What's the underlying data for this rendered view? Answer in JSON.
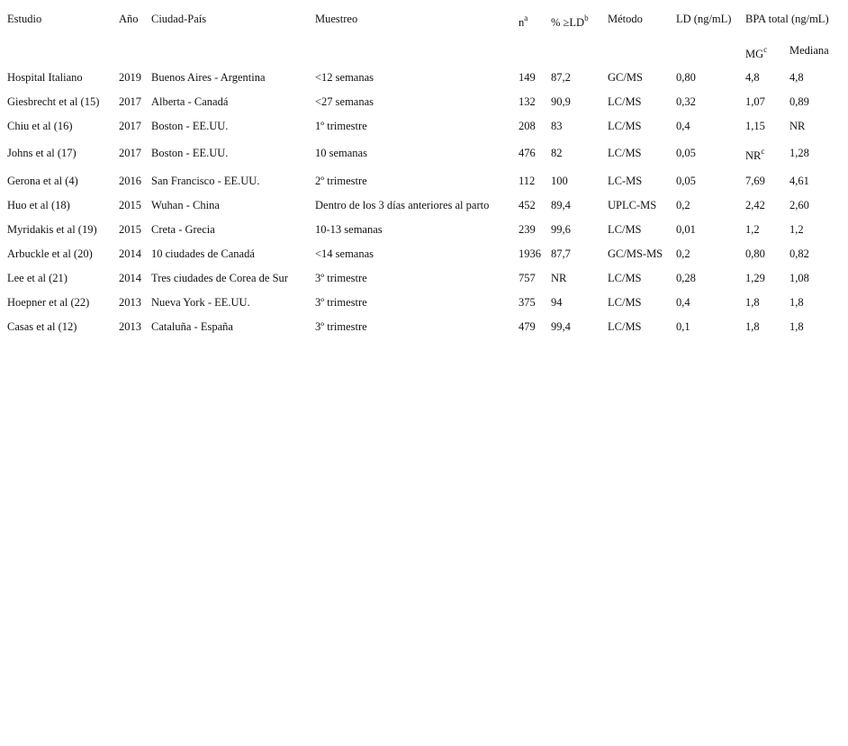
{
  "table": {
    "headers": [
      {
        "text": "Estudio"
      },
      {
        "text": "Año"
      },
      {
        "text": "Ciudad-País"
      },
      {
        "text": "Muestreo"
      },
      {
        "text": "n",
        "sup": "a"
      },
      {
        "text": "% ≥LD",
        "sup": "b"
      },
      {
        "text": "Método"
      },
      {
        "text": "LD (ng/mL)"
      },
      {
        "text": "BPA total (ng/mL)"
      }
    ],
    "subheaders": {
      "mg": {
        "text": "MG",
        "sup": "c"
      },
      "median": {
        "text": "Mediana"
      }
    },
    "rows": [
      [
        "Hospital Italiano",
        "2019",
        "Buenos Aires - Argentina",
        "<12 semanas",
        "149",
        "87,2",
        "GC/MS",
        "0,80",
        "4,8",
        "4,8"
      ],
      [
        "Giesbrecht et al (15)",
        "2017",
        "Alberta - Canadá",
        "<27 semanas",
        "132",
        "90,9",
        "LC/MS",
        "0,32",
        "1,07",
        "0,89"
      ],
      [
        "Chiu et al (16)",
        "2017",
        "Boston - EE.UU.",
        "1º trimestre",
        "208",
        "83",
        "LC/MS",
        "0,4",
        "1,15",
        "NR"
      ],
      [
        "Johns et al (17)",
        "2017",
        "Boston - EE.UU.",
        "10 semanas",
        "476",
        "82",
        "LC/MS",
        "0,05",
        "NR",
        "1,28"
      ],
      [
        "Gerona et al (4)",
        "2016",
        "San Francisco - EE.UU.",
        "2º trimestre",
        "112",
        "100",
        "LC-MS",
        "0,05",
        "7,69",
        "4,61"
      ],
      [
        "Huo et al (18)",
        "2015",
        "Wuhan - China",
        "Dentro de los 3 días anteriores al parto",
        "452",
        "89,4",
        "UPLC-MS",
        "0,2",
        "2,42",
        "2,60"
      ],
      [
        "Myridakis et al (19)",
        "2015",
        "Creta - Grecia",
        "10-13 semanas",
        "239",
        "99,6",
        "LC/MS",
        "0,01",
        "1,2",
        "1,2"
      ],
      [
        "Arbuckle et al (20)",
        "2014",
        "10 ciudades de Canadá",
        "<14 semanas",
        "1936",
        "87,7",
        "GC/MS-MS",
        "0,2",
        "0,80",
        "0,82"
      ],
      [
        "Lee et al (21)",
        "2014",
        "Tres ciudades de Corea de Sur",
        "3º trimestre",
        "757",
        "NR",
        "LC/MS",
        "0,28",
        "1,29",
        "1,08"
      ],
      [
        "Hoepner et al (22)",
        "2013",
        "Nueva York - EE.UU.",
        "3º trimestre",
        "375",
        "94",
        "LC/MS",
        "0,4",
        "1,8",
        "1,8"
      ],
      [
        "Casas et al (12)",
        "2013",
        "Cataluña - España",
        "3º trimestre",
        "479",
        "99,4",
        "LC/MS",
        "0,1",
        "1,8",
        "1,8"
      ]
    ],
    "row_superscripts": {
      "3": {
        "8": "c"
      }
    }
  }
}
